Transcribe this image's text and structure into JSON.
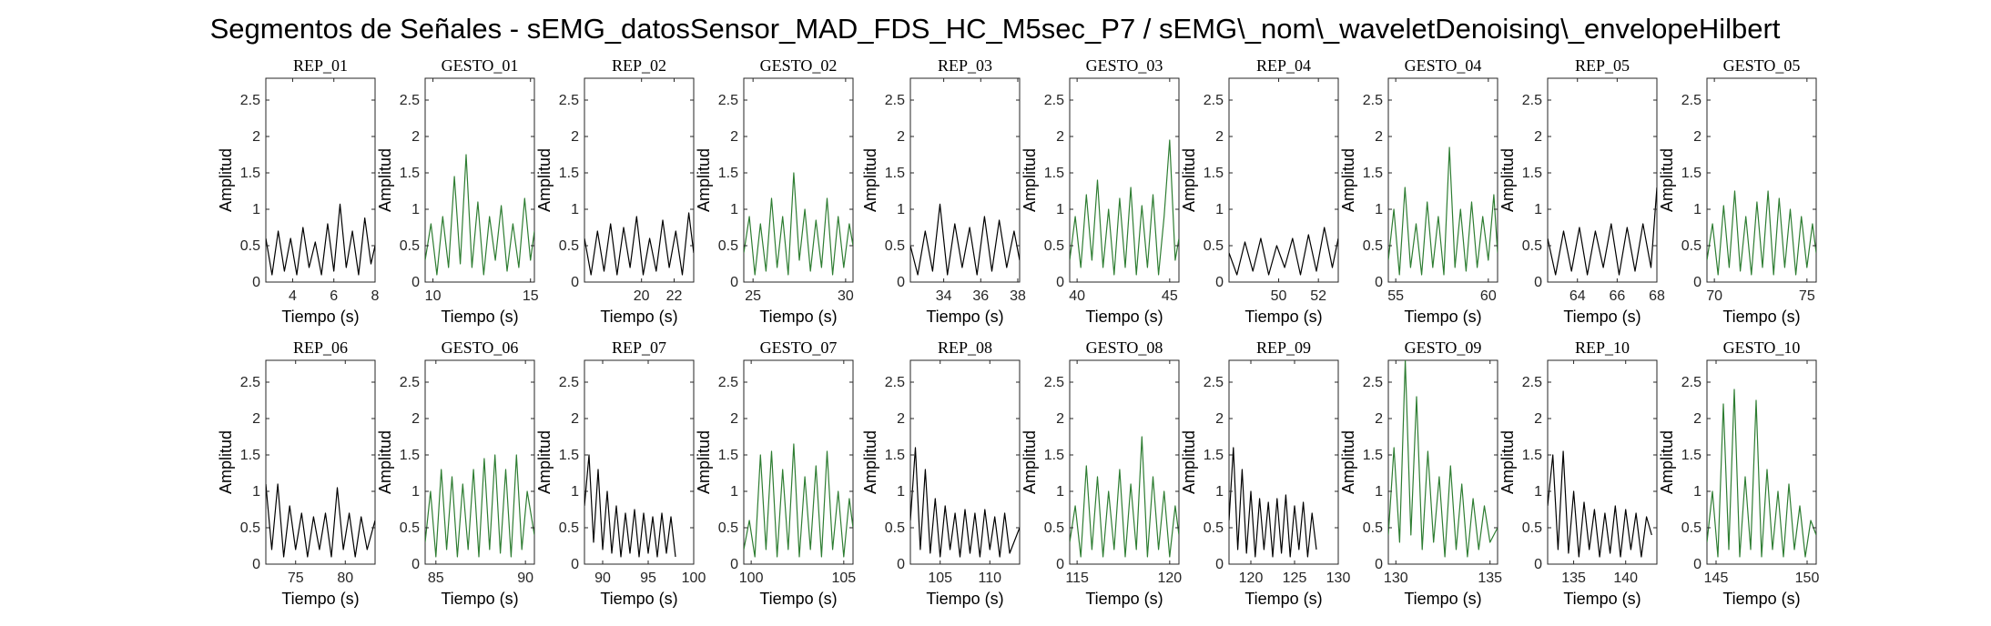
{
  "figure": {
    "title": "Segmentos de Señales - sEMG_datosSensor_MAD_FDS_HC_M5sec_P7 / sEMG\\_nom\\_waveletDenoising\\_envelopeHilbert"
  },
  "colors": {
    "rep": "#000000",
    "gesto": "#2e7d32",
    "axis": "#262626"
  },
  "chart_data": [
    {
      "type": "line",
      "title": "REP_01",
      "xlabel": "Tiempo (s)",
      "ylabel": "Amplitud",
      "xlim": [
        2.7,
        8
      ],
      "ylim": [
        0,
        2.8
      ],
      "xticks": [
        4,
        6,
        8
      ],
      "yticks": [
        0,
        0.5,
        1,
        1.5,
        2,
        2.5
      ],
      "color": "#000000",
      "x": [
        2.7,
        3.0,
        3.3,
        3.6,
        3.9,
        4.2,
        4.5,
        4.8,
        5.1,
        5.4,
        5.7,
        6.0,
        6.3,
        6.6,
        6.9,
        7.2,
        7.5,
        7.8,
        8.0
      ],
      "y": [
        0.6,
        0.1,
        0.7,
        0.15,
        0.6,
        0.1,
        0.75,
        0.2,
        0.55,
        0.1,
        0.8,
        0.15,
        1.07,
        0.2,
        0.7,
        0.1,
        0.88,
        0.25,
        0.5
      ]
    },
    {
      "type": "line",
      "title": "GESTO_01",
      "xlabel": "Tiempo (s)",
      "ylabel": "Amplitud",
      "xlim": [
        9.6,
        15.2
      ],
      "ylim": [
        0,
        2.8
      ],
      "xticks": [
        10,
        15
      ],
      "yticks": [
        0,
        0.5,
        1,
        1.5,
        2,
        2.5
      ],
      "color": "#2e7d32",
      "x": [
        9.6,
        9.9,
        10.2,
        10.5,
        10.8,
        11.1,
        11.4,
        11.7,
        12.0,
        12.3,
        12.6,
        12.9,
        13.2,
        13.5,
        13.8,
        14.1,
        14.4,
        14.7,
        15.0,
        15.2
      ],
      "y": [
        0.3,
        0.8,
        0.1,
        0.9,
        0.2,
        1.45,
        0.25,
        1.75,
        0.2,
        1.1,
        0.1,
        0.9,
        0.3,
        1.05,
        0.15,
        0.8,
        0.2,
        1.15,
        0.3,
        0.7
      ]
    },
    {
      "type": "line",
      "title": "REP_02",
      "xlabel": "Tiempo (s)",
      "ylabel": "Amplitud",
      "xlim": [
        16.5,
        23.2
      ],
      "ylim": [
        0,
        2.8
      ],
      "xticks": [
        20,
        22
      ],
      "yticks": [
        0,
        0.5,
        1,
        1.5,
        2,
        2.5
      ],
      "color": "#000000",
      "x": [
        16.5,
        16.9,
        17.3,
        17.7,
        18.1,
        18.5,
        18.9,
        19.3,
        19.7,
        20.1,
        20.5,
        20.9,
        21.3,
        21.7,
        22.1,
        22.5,
        22.9,
        23.2
      ],
      "y": [
        0.6,
        0.1,
        0.7,
        0.15,
        0.8,
        0.1,
        0.75,
        0.2,
        0.9,
        0.1,
        0.6,
        0.15,
        0.85,
        0.2,
        0.7,
        0.1,
        0.95,
        0.4
      ]
    },
    {
      "type": "line",
      "title": "GESTO_02",
      "xlabel": "Tiempo (s)",
      "ylabel": "Amplitud",
      "xlim": [
        24.5,
        30.4
      ],
      "ylim": [
        0,
        2.8
      ],
      "xticks": [
        25,
        30
      ],
      "yticks": [
        0,
        0.5,
        1,
        1.5,
        2,
        2.5
      ],
      "color": "#2e7d32",
      "x": [
        24.5,
        24.8,
        25.1,
        25.4,
        25.7,
        26.0,
        26.3,
        26.6,
        26.9,
        27.2,
        27.5,
        27.8,
        28.1,
        28.4,
        28.7,
        29.0,
        29.3,
        29.6,
        29.9,
        30.2,
        30.4
      ],
      "y": [
        0.4,
        0.9,
        0.1,
        0.8,
        0.15,
        1.15,
        0.2,
        0.9,
        0.1,
        1.5,
        0.3,
        1.0,
        0.15,
        0.85,
        0.2,
        1.15,
        0.1,
        0.9,
        0.2,
        0.8,
        0.5
      ]
    },
    {
      "type": "line",
      "title": "REP_03",
      "xlabel": "Tiempo (s)",
      "ylabel": "Amplitud",
      "xlim": [
        32.2,
        38.1
      ],
      "ylim": [
        0,
        2.8
      ],
      "xticks": [
        34,
        36,
        38
      ],
      "yticks": [
        0,
        0.5,
        1,
        1.5,
        2,
        2.5
      ],
      "color": "#000000",
      "x": [
        32.2,
        32.6,
        33.0,
        33.4,
        33.8,
        34.2,
        34.6,
        35.0,
        35.4,
        35.8,
        36.2,
        36.6,
        37.0,
        37.4,
        37.8,
        38.1
      ],
      "y": [
        0.5,
        0.1,
        0.7,
        0.15,
        1.07,
        0.1,
        0.8,
        0.2,
        0.75,
        0.1,
        0.9,
        0.15,
        0.85,
        0.2,
        0.7,
        0.3
      ]
    },
    {
      "type": "line",
      "title": "GESTO_03",
      "xlabel": "Tiempo (s)",
      "ylabel": "Amplitud",
      "xlim": [
        39.6,
        45.5
      ],
      "ylim": [
        0,
        2.8
      ],
      "xticks": [
        40,
        45
      ],
      "yticks": [
        0,
        0.5,
        1,
        1.5,
        2,
        2.5
      ],
      "color": "#2e7d32",
      "x": [
        39.6,
        39.9,
        40.2,
        40.5,
        40.8,
        41.1,
        41.4,
        41.7,
        42.0,
        42.3,
        42.6,
        42.9,
        43.2,
        43.5,
        43.8,
        44.1,
        44.4,
        44.7,
        45.0,
        45.3,
        45.5
      ],
      "y": [
        0.3,
        0.9,
        0.2,
        1.2,
        0.3,
        1.4,
        0.2,
        1.0,
        0.1,
        1.15,
        0.2,
        1.3,
        0.1,
        1.05,
        0.2,
        1.2,
        0.1,
        0.9,
        1.95,
        0.3,
        0.6
      ]
    },
    {
      "type": "line",
      "title": "REP_04",
      "xlabel": "Tiempo (s)",
      "ylabel": "Amplitud",
      "xlim": [
        47.5,
        53.0
      ],
      "ylim": [
        0,
        2.8
      ],
      "xticks": [
        50,
        52
      ],
      "yticks": [
        0,
        0.5,
        1,
        1.5,
        2,
        2.5
      ],
      "color": "#000000",
      "x": [
        47.5,
        47.9,
        48.3,
        48.7,
        49.1,
        49.5,
        49.9,
        50.3,
        50.7,
        51.1,
        51.5,
        51.9,
        52.3,
        52.7,
        53.0
      ],
      "y": [
        0.4,
        0.1,
        0.55,
        0.15,
        0.6,
        0.1,
        0.5,
        0.2,
        0.6,
        0.1,
        0.65,
        0.15,
        0.75,
        0.2,
        0.6
      ]
    },
    {
      "type": "line",
      "title": "GESTO_04",
      "xlabel": "Tiempo (s)",
      "ylabel": "Amplitud",
      "xlim": [
        54.6,
        60.5
      ],
      "ylim": [
        0,
        2.8
      ],
      "xticks": [
        55,
        60
      ],
      "yticks": [
        0,
        0.5,
        1,
        1.5,
        2,
        2.5
      ],
      "color": "#2e7d32",
      "x": [
        54.6,
        54.9,
        55.2,
        55.5,
        55.8,
        56.1,
        56.4,
        56.7,
        57.0,
        57.3,
        57.6,
        57.9,
        58.2,
        58.5,
        58.8,
        59.1,
        59.4,
        59.7,
        60.0,
        60.3,
        60.5
      ],
      "y": [
        0.3,
        1.0,
        0.1,
        1.3,
        0.2,
        0.8,
        0.1,
        1.1,
        0.2,
        0.9,
        0.1,
        1.85,
        0.2,
        1.0,
        0.15,
        1.1,
        0.2,
        0.9,
        0.3,
        1.2,
        0.4
      ]
    },
    {
      "type": "line",
      "title": "REP_05",
      "xlabel": "Tiempo (s)",
      "ylabel": "Amplitud",
      "xlim": [
        62.5,
        68.0
      ],
      "ylim": [
        0,
        2.8
      ],
      "xticks": [
        64,
        66,
        68
      ],
      "yticks": [
        0,
        0.5,
        1,
        1.5,
        2,
        2.5
      ],
      "color": "#000000",
      "x": [
        62.5,
        62.9,
        63.3,
        63.7,
        64.1,
        64.5,
        64.9,
        65.3,
        65.7,
        66.1,
        66.5,
        66.9,
        67.3,
        67.7,
        68.0
      ],
      "y": [
        0.6,
        0.1,
        0.7,
        0.15,
        0.75,
        0.1,
        0.7,
        0.2,
        0.8,
        0.1,
        0.75,
        0.15,
        0.8,
        0.2,
        1.3
      ]
    },
    {
      "type": "line",
      "title": "GESTO_05",
      "xlabel": "Tiempo (s)",
      "ylabel": "Amplitud",
      "xlim": [
        69.6,
        75.5
      ],
      "ylim": [
        0,
        2.8
      ],
      "xticks": [
        70,
        75
      ],
      "yticks": [
        0,
        0.5,
        1,
        1.5,
        2,
        2.5
      ],
      "color": "#2e7d32",
      "x": [
        69.6,
        69.9,
        70.2,
        70.5,
        70.8,
        71.1,
        71.4,
        71.7,
        72.0,
        72.3,
        72.6,
        72.9,
        73.2,
        73.5,
        73.8,
        74.1,
        74.4,
        74.7,
        75.0,
        75.3,
        75.5
      ],
      "y": [
        0.3,
        0.8,
        0.1,
        1.05,
        0.2,
        1.25,
        0.15,
        0.9,
        0.1,
        1.1,
        0.2,
        1.25,
        0.1,
        1.15,
        0.2,
        1.0,
        0.1,
        0.9,
        0.2,
        0.8,
        0.4
      ]
    },
    {
      "type": "line",
      "title": "REP_06",
      "xlabel": "Tiempo (s)",
      "ylabel": "Amplitud",
      "xlim": [
        72.0,
        83.0
      ],
      "ylim": [
        0,
        2.8
      ],
      "xticks": [
        75,
        80
      ],
      "yticks": [
        0,
        0.5,
        1,
        1.5,
        2,
        2.5
      ],
      "color": "#000000",
      "x": [
        72.0,
        72.6,
        73.2,
        73.8,
        74.4,
        75.0,
        75.6,
        76.2,
        76.8,
        77.4,
        78.0,
        78.6,
        79.2,
        79.8,
        80.4,
        81.0,
        81.6,
        82.2,
        83.0
      ],
      "y": [
        1.1,
        0.2,
        1.1,
        0.1,
        0.8,
        0.2,
        0.7,
        0.1,
        0.65,
        0.2,
        0.7,
        0.1,
        1.05,
        0.2,
        0.7,
        0.1,
        0.65,
        0.2,
        0.6
      ]
    },
    {
      "type": "line",
      "title": "GESTO_06",
      "xlabel": "Tiempo (s)",
      "ylabel": "Amplitud",
      "xlim": [
        84.4,
        90.5
      ],
      "ylim": [
        0,
        2.8
      ],
      "xticks": [
        85,
        90
      ],
      "yticks": [
        0,
        0.5,
        1,
        1.5,
        2,
        2.5
      ],
      "color": "#2e7d32",
      "x": [
        84.4,
        84.7,
        85.0,
        85.3,
        85.6,
        85.9,
        86.2,
        86.5,
        86.8,
        87.1,
        87.4,
        87.7,
        88.0,
        88.3,
        88.6,
        88.9,
        89.2,
        89.5,
        89.8,
        90.1,
        90.5
      ],
      "y": [
        0.3,
        1.0,
        0.1,
        1.3,
        0.2,
        1.2,
        0.1,
        1.1,
        0.2,
        1.3,
        0.1,
        1.45,
        0.2,
        1.5,
        0.15,
        1.3,
        0.1,
        1.5,
        0.2,
        1.0,
        0.4
      ]
    },
    {
      "type": "line",
      "title": "REP_07",
      "xlabel": "Tiempo (s)",
      "ylabel": "Amplitud",
      "xlim": [
        88.0,
        100.0
      ],
      "ylim": [
        0,
        2.8
      ],
      "xticks": [
        90,
        95,
        100
      ],
      "yticks": [
        0,
        0.5,
        1,
        1.5,
        2,
        2.5
      ],
      "color": "#000000",
      "x": [
        88.0,
        88.5,
        89.0,
        89.5,
        90.0,
        90.5,
        91.0,
        91.5,
        92.0,
        92.5,
        93.0,
        93.5,
        94.0,
        94.5,
        95.0,
        95.5,
        96.0,
        96.5,
        97.0,
        97.5,
        98.0
      ],
      "y": [
        0.8,
        1.5,
        0.3,
        1.3,
        0.2,
        1.0,
        0.15,
        0.8,
        0.1,
        0.7,
        0.15,
        0.75,
        0.1,
        0.7,
        0.15,
        0.65,
        0.1,
        0.7,
        0.15,
        0.65,
        0.1
      ]
    },
    {
      "type": "line",
      "title": "GESTO_07",
      "xlabel": "Tiempo (s)",
      "ylabel": "Amplitud",
      "xlim": [
        99.6,
        105.5
      ],
      "ylim": [
        0,
        2.8
      ],
      "xticks": [
        100,
        105
      ],
      "yticks": [
        0,
        0.5,
        1,
        1.5,
        2,
        2.5
      ],
      "color": "#2e7d32",
      "x": [
        99.6,
        99.9,
        100.2,
        100.5,
        100.8,
        101.1,
        101.4,
        101.7,
        102.0,
        102.3,
        102.6,
        102.9,
        103.2,
        103.5,
        103.8,
        104.1,
        104.4,
        104.7,
        105.0,
        105.3,
        105.5
      ],
      "y": [
        0.2,
        0.6,
        0.1,
        1.5,
        0.2,
        1.55,
        0.1,
        1.3,
        0.2,
        1.65,
        0.1,
        1.2,
        0.2,
        1.35,
        0.1,
        1.55,
        0.2,
        1.0,
        0.1,
        0.9,
        0.5
      ]
    },
    {
      "type": "line",
      "title": "REP_08",
      "xlabel": "Tiempo (s)",
      "ylabel": "Amplitud",
      "xlim": [
        102.0,
        113.0
      ],
      "ylim": [
        0,
        2.8
      ],
      "xticks": [
        105,
        110
      ],
      "yticks": [
        0,
        0.5,
        1,
        1.5,
        2,
        2.5
      ],
      "color": "#000000",
      "x": [
        102.0,
        102.5,
        103.0,
        103.5,
        104.0,
        104.5,
        105.0,
        105.5,
        106.0,
        106.5,
        107.0,
        107.5,
        108.0,
        108.5,
        109.0,
        109.5,
        110.0,
        110.5,
        111.0,
        111.5,
        112.0,
        113.0
      ],
      "y": [
        0.6,
        1.6,
        0.2,
        1.3,
        0.15,
        0.9,
        0.1,
        0.8,
        0.2,
        0.7,
        0.1,
        0.75,
        0.15,
        0.7,
        0.1,
        0.75,
        0.2,
        0.65,
        0.1,
        0.7,
        0.15,
        0.5
      ]
    },
    {
      "type": "line",
      "title": "GESTO_08",
      "xlabel": "Tiempo (s)",
      "ylabel": "Amplitud",
      "xlim": [
        114.6,
        120.5
      ],
      "ylim": [
        0,
        2.8
      ],
      "xticks": [
        115,
        120
      ],
      "yticks": [
        0,
        0.5,
        1,
        1.5,
        2,
        2.5
      ],
      "color": "#2e7d32",
      "x": [
        114.6,
        114.9,
        115.2,
        115.5,
        115.8,
        116.1,
        116.4,
        116.7,
        117.0,
        117.3,
        117.6,
        117.9,
        118.2,
        118.5,
        118.8,
        119.1,
        119.4,
        119.7,
        120.0,
        120.3,
        120.5
      ],
      "y": [
        0.3,
        0.8,
        0.1,
        1.35,
        0.2,
        1.2,
        0.1,
        1.0,
        0.2,
        1.3,
        0.1,
        1.1,
        0.2,
        1.75,
        0.1,
        1.2,
        0.2,
        1.0,
        0.1,
        0.8,
        0.4
      ]
    },
    {
      "type": "line",
      "title": "REP_09",
      "xlabel": "Tiempo (s)",
      "ylabel": "Amplitud",
      "xlim": [
        117.5,
        130.0
      ],
      "ylim": [
        0,
        2.8
      ],
      "xticks": [
        120,
        125,
        130
      ],
      "yticks": [
        0,
        0.5,
        1,
        1.5,
        2,
        2.5
      ],
      "color": "#000000",
      "x": [
        117.5,
        118.0,
        118.5,
        119.0,
        119.5,
        120.0,
        120.5,
        121.0,
        121.5,
        122.0,
        122.5,
        123.0,
        123.5,
        124.0,
        124.5,
        125.0,
        125.5,
        126.0,
        126.5,
        127.0,
        127.5
      ],
      "y": [
        0.6,
        1.6,
        0.2,
        1.3,
        0.15,
        1.0,
        0.1,
        0.9,
        0.2,
        0.85,
        0.1,
        0.9,
        0.15,
        0.95,
        0.1,
        0.8,
        0.2,
        0.85,
        0.1,
        0.7,
        0.2
      ]
    },
    {
      "type": "line",
      "title": "GESTO_09",
      "xlabel": "Tiempo (s)",
      "ylabel": "Amplitud",
      "xlim": [
        129.6,
        135.4
      ],
      "ylim": [
        0,
        2.8
      ],
      "xticks": [
        130,
        135
      ],
      "yticks": [
        0,
        0.5,
        1,
        1.5,
        2,
        2.5
      ],
      "color": "#2e7d32",
      "x": [
        129.6,
        129.9,
        130.2,
        130.5,
        130.8,
        131.1,
        131.4,
        131.7,
        132.0,
        132.3,
        132.6,
        132.9,
        133.2,
        133.5,
        133.8,
        134.1,
        134.4,
        134.7,
        135.0,
        135.4
      ],
      "y": [
        0.4,
        1.6,
        0.3,
        2.8,
        0.4,
        2.3,
        0.2,
        1.55,
        0.3,
        1.2,
        0.1,
        1.35,
        0.2,
        1.1,
        0.1,
        0.9,
        0.2,
        0.8,
        0.3,
        0.5
      ]
    },
    {
      "type": "line",
      "title": "REP_10",
      "xlabel": "Tiempo (s)",
      "ylabel": "Amplitud",
      "xlim": [
        132.5,
        143.0
      ],
      "ylim": [
        0,
        2.8
      ],
      "xticks": [
        135,
        140
      ],
      "yticks": [
        0,
        0.5,
        1,
        1.5,
        2,
        2.5
      ],
      "color": "#000000",
      "x": [
        132.5,
        133.0,
        133.5,
        134.0,
        134.5,
        135.0,
        135.5,
        136.0,
        136.5,
        137.0,
        137.5,
        138.0,
        138.5,
        139.0,
        139.5,
        140.0,
        140.5,
        141.0,
        141.5,
        142.0,
        142.5
      ],
      "y": [
        0.8,
        1.5,
        0.2,
        1.55,
        0.15,
        1.0,
        0.1,
        0.85,
        0.2,
        0.75,
        0.1,
        0.7,
        0.15,
        0.8,
        0.1,
        0.75,
        0.2,
        0.7,
        0.1,
        0.65,
        0.4
      ]
    },
    {
      "type": "line",
      "title": "GESTO_10",
      "xlabel": "Tiempo (s)",
      "ylabel": "Amplitud",
      "xlim": [
        144.5,
        150.5
      ],
      "ylim": [
        0,
        2.8
      ],
      "xticks": [
        145,
        150
      ],
      "yticks": [
        0,
        0.5,
        1,
        1.5,
        2,
        2.5
      ],
      "color": "#2e7d32",
      "x": [
        144.5,
        144.8,
        145.1,
        145.4,
        145.7,
        146.0,
        146.3,
        146.6,
        146.9,
        147.2,
        147.5,
        147.8,
        148.1,
        148.4,
        148.7,
        149.0,
        149.3,
        149.6,
        149.9,
        150.2,
        150.5
      ],
      "y": [
        0.3,
        1.0,
        0.1,
        2.2,
        0.2,
        2.4,
        0.1,
        1.2,
        0.2,
        2.25,
        0.1,
        1.3,
        0.2,
        1.0,
        0.1,
        1.1,
        0.2,
        0.8,
        0.1,
        0.6,
        0.4
      ]
    }
  ]
}
